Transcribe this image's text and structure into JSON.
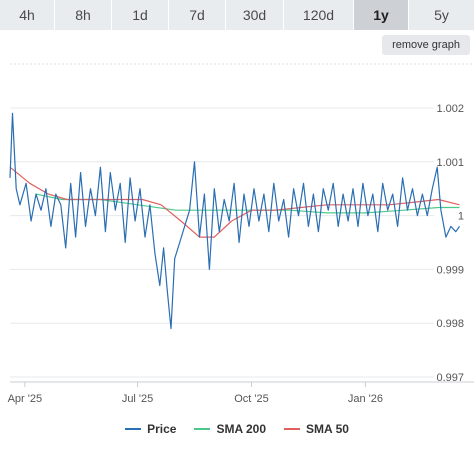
{
  "tabs": [
    {
      "label": "4h",
      "active": false
    },
    {
      "label": "8h",
      "active": false
    },
    {
      "label": "1d",
      "active": false
    },
    {
      "label": "7d",
      "active": false
    },
    {
      "label": "30d",
      "active": false
    },
    {
      "label": "120d",
      "active": false
    },
    {
      "label": "1y",
      "active": true
    },
    {
      "label": "5y",
      "active": false
    }
  ],
  "remove_graph_label": "remove graph",
  "chart_data": {
    "type": "line",
    "x_ticks": [
      "Apr '25",
      "Jul '25",
      "Oct '25",
      "Jan '26"
    ],
    "y_ticks": [
      "1.002",
      "1.001",
      "1",
      "0.999",
      "0.998",
      "0.997"
    ],
    "ylim": [
      0.997,
      1.002
    ],
    "xlim": [
      "2025-03-20",
      "2026-03-20"
    ],
    "grid": true,
    "legend_position": "bottom",
    "series": [
      {
        "name": "Price",
        "color": "#2a6eb3",
        "points": [
          [
            "2025-03-20",
            1.0007
          ],
          [
            "2025-03-22",
            1.0019
          ],
          [
            "2025-03-25",
            1.0005
          ],
          [
            "2025-03-28",
            1.0002
          ],
          [
            "2025-04-02",
            1.0006
          ],
          [
            "2025-04-06",
            0.9999
          ],
          [
            "2025-04-10",
            1.0004
          ],
          [
            "2025-04-14",
            1.0001
          ],
          [
            "2025-04-18",
            1.0005
          ],
          [
            "2025-04-22",
            0.9998
          ],
          [
            "2025-04-26",
            1.0004
          ],
          [
            "2025-04-30",
            1.0002
          ],
          [
            "2025-05-04",
            0.9994
          ],
          [
            "2025-05-08",
            1.0006
          ],
          [
            "2025-05-12",
            0.9996
          ],
          [
            "2025-05-16",
            1.0008
          ],
          [
            "2025-05-20",
            0.9998
          ],
          [
            "2025-05-24",
            1.0005
          ],
          [
            "2025-05-28",
            1.0
          ],
          [
            "2025-06-01",
            1.0009
          ],
          [
            "2025-06-05",
            0.9997
          ],
          [
            "2025-06-09",
            1.0008
          ],
          [
            "2025-06-13",
            1.0001
          ],
          [
            "2025-06-17",
            1.0006
          ],
          [
            "2025-06-21",
            0.9995
          ],
          [
            "2025-06-25",
            1.0007
          ],
          [
            "2025-06-29",
            0.9999
          ],
          [
            "2025-07-03",
            1.0005
          ],
          [
            "2025-07-07",
            0.9996
          ],
          [
            "2025-07-11",
            1.0002
          ],
          [
            "2025-07-15",
            0.9993
          ],
          [
            "2025-07-19",
            0.9987
          ],
          [
            "2025-07-22",
            0.9994
          ],
          [
            "2025-07-25",
            0.9986
          ],
          [
            "2025-07-28",
            0.9979
          ],
          [
            "2025-07-31",
            0.9992
          ],
          [
            "2025-08-04",
            0.9995
          ],
          [
            "2025-08-08",
            0.9998
          ],
          [
            "2025-08-12",
            1.0001
          ],
          [
            "2025-08-16",
            1.001
          ],
          [
            "2025-08-20",
            0.9996
          ],
          [
            "2025-08-24",
            1.0004
          ],
          [
            "2025-08-28",
            0.999
          ],
          [
            "2025-09-01",
            1.0005
          ],
          [
            "2025-09-05",
            0.9997
          ],
          [
            "2025-09-09",
            1.0003
          ],
          [
            "2025-09-13",
            0.9999
          ],
          [
            "2025-09-17",
            1.0006
          ],
          [
            "2025-09-21",
            0.9995
          ],
          [
            "2025-09-25",
            1.0004
          ],
          [
            "2025-09-29",
            0.9998
          ],
          [
            "2025-10-03",
            1.0005
          ],
          [
            "2025-10-07",
            0.9999
          ],
          [
            "2025-10-11",
            1.0004
          ],
          [
            "2025-10-15",
            0.9997
          ],
          [
            "2025-10-19",
            1.0006
          ],
          [
            "2025-10-23",
            0.9999
          ],
          [
            "2025-10-27",
            1.0003
          ],
          [
            "2025-10-31",
            0.9996
          ],
          [
            "2025-11-04",
            1.0005
          ],
          [
            "2025-11-08",
            1.0
          ],
          [
            "2025-11-12",
            1.0006
          ],
          [
            "2025-11-16",
            0.9998
          ],
          [
            "2025-11-20",
            1.0004
          ],
          [
            "2025-11-24",
            0.9997
          ],
          [
            "2025-11-28",
            1.0005
          ],
          [
            "2025-12-02",
            1.0001
          ],
          [
            "2025-12-06",
            1.0006
          ],
          [
            "2025-12-10",
            0.9998
          ],
          [
            "2025-12-14",
            1.0004
          ],
          [
            "2025-12-18",
            0.9999
          ],
          [
            "2025-12-22",
            1.0005
          ],
          [
            "2025-12-26",
            0.9998
          ],
          [
            "2025-12-30",
            1.0006
          ],
          [
            "2026-01-03",
            1.0
          ],
          [
            "2026-01-07",
            1.0004
          ],
          [
            "2026-01-11",
            0.9997
          ],
          [
            "2026-01-15",
            1.0006
          ],
          [
            "2026-01-19",
            1.0001
          ],
          [
            "2026-01-23",
            1.0004
          ],
          [
            "2026-01-27",
            0.9998
          ],
          [
            "2026-01-31",
            1.0007
          ],
          [
            "2026-02-04",
            1.0001
          ],
          [
            "2026-02-08",
            1.0005
          ],
          [
            "2026-02-12",
            1.0
          ],
          [
            "2026-02-16",
            1.0004
          ],
          [
            "2026-02-20",
            1.0
          ],
          [
            "2026-02-24",
            1.0005
          ],
          [
            "2026-02-28",
            1.0009
          ],
          [
            "2026-03-03",
            1.0001
          ],
          [
            "2026-03-07",
            0.9996
          ],
          [
            "2026-03-11",
            0.9998
          ],
          [
            "2026-03-15",
            0.9997
          ],
          [
            "2026-03-18",
            0.9998
          ]
        ]
      },
      {
        "name": "SMA 200",
        "color": "#4cc98a",
        "points": [
          [
            "2025-04-10",
            1.0004
          ],
          [
            "2025-05-01",
            1.0003
          ],
          [
            "2025-06-01",
            1.0003
          ],
          [
            "2025-07-01",
            1.0002
          ],
          [
            "2025-08-01",
            1.0001
          ],
          [
            "2025-09-01",
            1.0001
          ],
          [
            "2025-10-01",
            1.0001
          ],
          [
            "2025-11-01",
            1.0001
          ],
          [
            "2025-12-01",
            1.00005
          ],
          [
            "2026-01-01",
            1.00005
          ],
          [
            "2026-02-01",
            1.0001
          ],
          [
            "2026-03-01",
            1.00015
          ],
          [
            "2026-03-18",
            1.00015
          ]
        ]
      },
      {
        "name": "SMA 50",
        "color": "#e06060",
        "points": [
          [
            "2025-03-20",
            1.0009
          ],
          [
            "2025-04-05",
            1.0006
          ],
          [
            "2025-04-20",
            1.0004
          ],
          [
            "2025-05-05",
            1.0003
          ],
          [
            "2025-05-20",
            1.0003
          ],
          [
            "2025-06-05",
            1.0003
          ],
          [
            "2025-06-20",
            1.0003
          ],
          [
            "2025-07-05",
            1.0003
          ],
          [
            "2025-07-20",
            1.0002
          ],
          [
            "2025-08-05",
            0.9999
          ],
          [
            "2025-08-20",
            0.9996
          ],
          [
            "2025-09-01",
            0.9996
          ],
          [
            "2025-09-15",
            0.9999
          ],
          [
            "2025-10-01",
            1.0001
          ],
          [
            "2025-10-20",
            1.0001
          ],
          [
            "2025-11-10",
            1.00015
          ],
          [
            "2025-12-01",
            1.0002
          ],
          [
            "2025-12-25",
            1.0002
          ],
          [
            "2026-01-20",
            1.0002
          ],
          [
            "2026-02-10",
            1.00025
          ],
          [
            "2026-03-01",
            1.0003
          ],
          [
            "2026-03-18",
            1.0002
          ]
        ]
      }
    ]
  }
}
